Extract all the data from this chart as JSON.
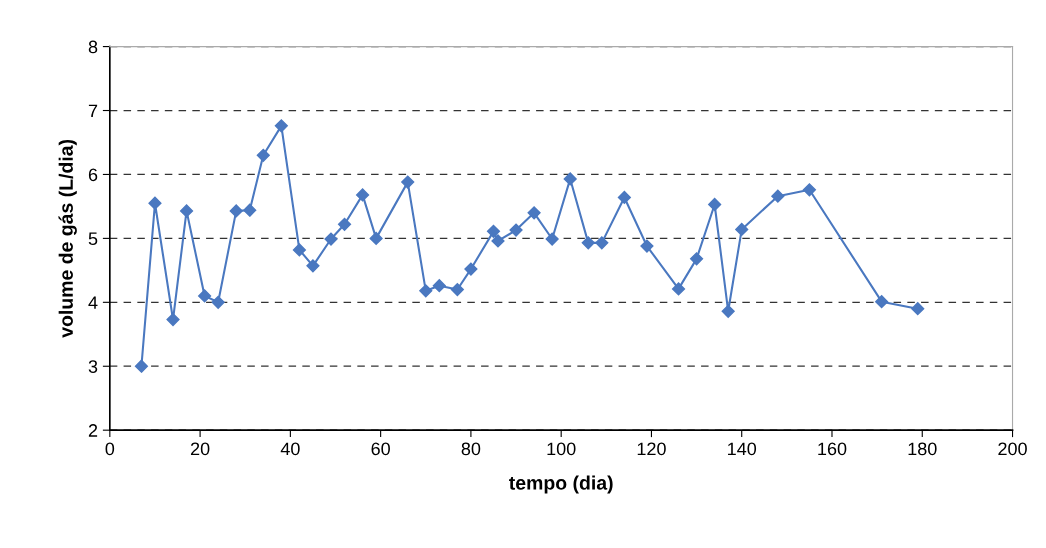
{
  "chart_data": {
    "type": "line",
    "xlabel": "tempo (dia)",
    "ylabel": "volume de gás (L/dia)",
    "xlim": [
      0,
      200
    ],
    "xticks": [
      0,
      20,
      40,
      60,
      80,
      100,
      120,
      140,
      160,
      180,
      200
    ],
    "ylim": [
      2,
      8
    ],
    "yticks": [
      2,
      3,
      4,
      5,
      6,
      7,
      8
    ],
    "grid": "y",
    "marker": "diamond",
    "line_style": "solid",
    "series": [
      {
        "color": "#4a78c0",
        "x": [
          7,
          10,
          14,
          17,
          21,
          24,
          28,
          31,
          34,
          38,
          42,
          45,
          49,
          52,
          56,
          59,
          66,
          70,
          73,
          77,
          80,
          85,
          86,
          90,
          94,
          98,
          102,
          106,
          109,
          114,
          119,
          126,
          130,
          134,
          137,
          140,
          148,
          155,
          171,
          179
        ],
        "values": [
          3.0,
          5.55,
          3.73,
          5.43,
          4.1,
          4.0,
          5.43,
          5.44,
          6.3,
          6.76,
          4.82,
          4.57,
          4.99,
          5.22,
          5.68,
          5.0,
          5.88,
          4.18,
          4.26,
          4.2,
          4.52,
          5.11,
          4.96,
          5.13,
          5.4,
          4.99,
          5.93,
          4.93,
          4.93,
          5.64,
          4.88,
          4.21,
          4.68,
          5.53,
          3.86,
          5.14,
          5.66,
          5.76,
          4.01,
          3.9
        ]
      }
    ]
  }
}
